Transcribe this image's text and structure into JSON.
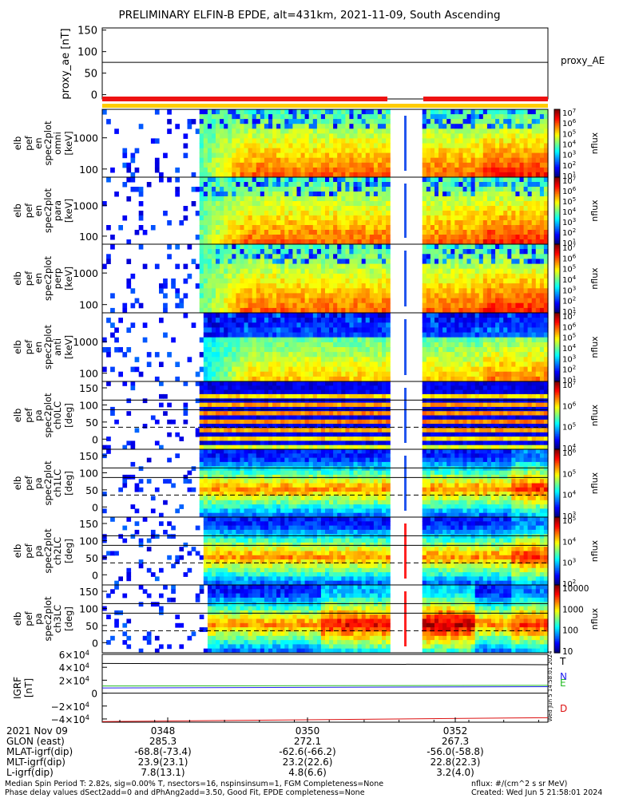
{
  "title": "PRELIMINARY ELFIN-B EPDE, alt=431km, 2021-11-09, South Ascending",
  "colors": {
    "pos_red": "#ee1111",
    "pos_yellow": "#ffcc00",
    "grid": "#000000"
  },
  "chart_data": [
    {
      "type": "line",
      "id": "proxy_ae",
      "ylabel": "proxy_ae [nT]",
      "yticks": [
        "150",
        "100",
        "50",
        "0"
      ],
      "ylim": [
        -10,
        155
      ],
      "series": [
        {
          "name": "proxy_AE",
          "values": [
            75,
            75
          ]
        }
      ]
    },
    {
      "type": "heatmap",
      "id": "en_omni",
      "ylabel": [
        "elb",
        "pef",
        "en",
        "spec2plot",
        "omni",
        "[keV]"
      ],
      "yticks": [
        "1000",
        "100"
      ],
      "colorbar_label": "nflux",
      "colorbar_ticks": [
        "10^7",
        "10^6",
        "10^5",
        "10^4",
        "10^3",
        "10^2",
        "10^1"
      ]
    },
    {
      "type": "heatmap",
      "id": "en_para",
      "ylabel": [
        "elb",
        "pef",
        "en",
        "spec2plot",
        "para",
        "[keV]"
      ],
      "yticks": [
        "1000",
        "100"
      ],
      "colorbar_label": "nflux",
      "colorbar_ticks": [
        "10^7",
        "10^6",
        "10^5",
        "10^4",
        "10^3",
        "10^2",
        "10^1"
      ]
    },
    {
      "type": "heatmap",
      "id": "en_perp",
      "ylabel": [
        "elb",
        "pef",
        "en",
        "spec2plot",
        "perp",
        "[keV]"
      ],
      "yticks": [
        "1000",
        "100"
      ],
      "colorbar_label": "nflux",
      "colorbar_ticks": [
        "10^7",
        "10^6",
        "10^5",
        "10^4",
        "10^3",
        "10^2",
        "10^1"
      ]
    },
    {
      "type": "heatmap",
      "id": "en_anti",
      "ylabel": [
        "elb",
        "pef",
        "en",
        "spec2plot",
        "anti",
        "[keV]"
      ],
      "yticks": [
        "1000",
        "100"
      ],
      "colorbar_label": "nflux",
      "colorbar_ticks": [
        "10^7",
        "10^6",
        "10^5",
        "10^4",
        "10^3",
        "10^2",
        "10^1"
      ]
    },
    {
      "type": "heatmap",
      "id": "pa_ch0",
      "ylabel": [
        "elb",
        "pef",
        "pa",
        "spec2plot",
        "ch0LC",
        "[deg]"
      ],
      "yticks": [
        "150",
        "100",
        "50",
        "0"
      ],
      "colorbar_label": "nflux",
      "colorbar_ticks": [
        "10^7",
        "10^6",
        "10^5",
        "10^4"
      ]
    },
    {
      "type": "heatmap",
      "id": "pa_ch1",
      "ylabel": [
        "elb",
        "pef",
        "pa",
        "spec2plot",
        "ch1LC",
        "[deg]"
      ],
      "yticks": [
        "150",
        "100",
        "50",
        "0"
      ],
      "colorbar_label": "nflux",
      "colorbar_ticks": [
        "10^6",
        "10^5",
        "10^4",
        "10^3"
      ]
    },
    {
      "type": "heatmap",
      "id": "pa_ch2",
      "ylabel": [
        "elb",
        "pef",
        "pa",
        "spec2plot",
        "ch2LC",
        "[deg]"
      ],
      "yticks": [
        "150",
        "100",
        "50",
        "0"
      ],
      "colorbar_label": "nflux",
      "colorbar_ticks": [
        "10^5",
        "10^4",
        "10^3",
        "10^2"
      ]
    },
    {
      "type": "heatmap",
      "id": "pa_ch3",
      "ylabel": [
        "elb",
        "pef",
        "pa",
        "spec2plot",
        "ch3LC",
        "[deg]"
      ],
      "yticks": [
        "150",
        "100",
        "50",
        "0"
      ],
      "colorbar_label": "nflux",
      "colorbar_ticks": [
        "10000",
        "1000",
        "100",
        "10"
      ]
    },
    {
      "type": "line",
      "id": "igrf",
      "ylabel": [
        "IGRF",
        "[nT]"
      ],
      "yticks": [
        "6×10^4",
        "4×10^4",
        "2×10^4",
        "0",
        "−2×10^4",
        "−4×10^4"
      ],
      "ylim": [
        -45000,
        60000
      ],
      "series": [
        {
          "name": "T",
          "color": "#000000",
          "values": [
            46000,
            44000
          ]
        },
        {
          "name": "N",
          "color": "#2222ee",
          "values": [
            8000,
            10000
          ]
        },
        {
          "name": "E",
          "color": "#22bb22",
          "values": [
            11000,
            12000
          ]
        },
        {
          "name": "D",
          "color": "#dd1111",
          "values": [
            -44000,
            -38000
          ]
        }
      ]
    }
  ],
  "ephemeris": {
    "rows": [
      {
        "label": "2021 Nov 09",
        "values": [
          "0348",
          "0350",
          "0352"
        ]
      },
      {
        "label": "GLON (east)",
        "values": [
          "285.3",
          "272.1",
          "267.3"
        ]
      },
      {
        "label": "MLAT-igrf(dip)",
        "values": [
          "-68.8(-73.4)",
          "-62.6(-66.2)",
          "-56.0(-58.8)"
        ]
      },
      {
        "label": "MLT-igrf(dip)",
        "values": [
          "23.9(23.1)",
          "23.2(22.6)",
          "22.8(22.3)"
        ]
      },
      {
        "label": "L-igrf(dip)",
        "values": [
          "7.8(13.1)",
          "4.8(6.6)",
          "3.2(4.0)"
        ]
      }
    ]
  },
  "footer": {
    "left1": "Median Spin Period T: 2.82s, sig=0.00% T, nsectors=16, nspinsinsum=1, FGM Completeness=None",
    "left2": "Phase delay values dSect2add=0 and dPhAng2add=3.50, Good Fit, EPDE completeness=None",
    "right1": "nflux: #/(cm^2 s sr MeV)",
    "right2": "Created: Wed Jun  5 21:58:01 2024",
    "sidebar": "Wed Jun  5 14:58:01 2024"
  }
}
